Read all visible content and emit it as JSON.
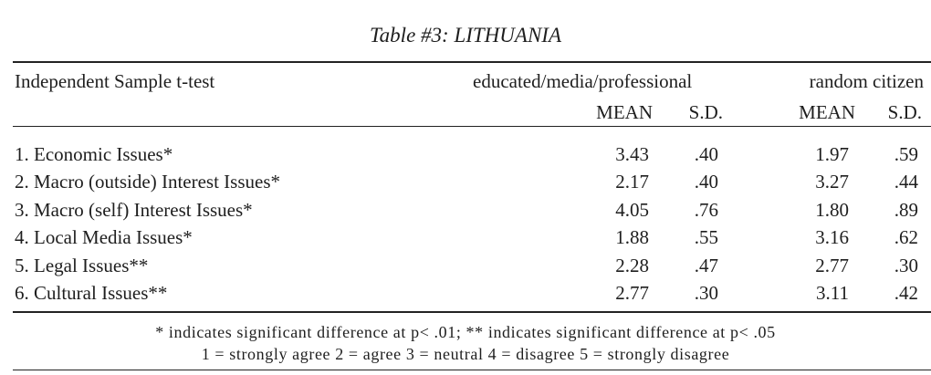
{
  "title": "Table #3: LITHUANIA",
  "header": {
    "left": "Independent Sample t-test",
    "group1": "educated/media/professional",
    "group2": "random citizen",
    "mean_label": "MEAN",
    "sd_label": "S.D."
  },
  "rows": [
    {
      "label": "1. Economic Issues*",
      "g1_mean": "3.43",
      "g1_sd": ".40",
      "g2_mean": "1.97",
      "g2_sd": ".59"
    },
    {
      "label": "2. Macro (outside) Interest Issues*",
      "g1_mean": "2.17",
      "g1_sd": ".40",
      "g2_mean": "3.27",
      "g2_sd": ".44"
    },
    {
      "label": "3. Macro (self) Interest Issues*",
      "g1_mean": "4.05",
      "g1_sd": ".76",
      "g2_mean": "1.80",
      "g2_sd": ".89"
    },
    {
      "label": "4. Local Media Issues*",
      "g1_mean": "1.88",
      "g1_sd": ".55",
      "g2_mean": "3.16",
      "g2_sd": ".62"
    },
    {
      "label": "5. Legal Issues**",
      "g1_mean": "2.28",
      "g1_sd": ".47",
      "g2_mean": "2.77",
      "g2_sd": ".30"
    },
    {
      "label": "6. Cultural Issues**",
      "g1_mean": "2.77",
      "g1_sd": ".30",
      "g2_mean": "3.11",
      "g2_sd": ".42"
    }
  ],
  "notes": {
    "significance": "* indicates significant difference at p< .01; ** indicates significant difference at p< .05",
    "scale": "1 = strongly agree  2 = agree  3 = neutral  4 = disagree  5 = strongly disagree"
  }
}
